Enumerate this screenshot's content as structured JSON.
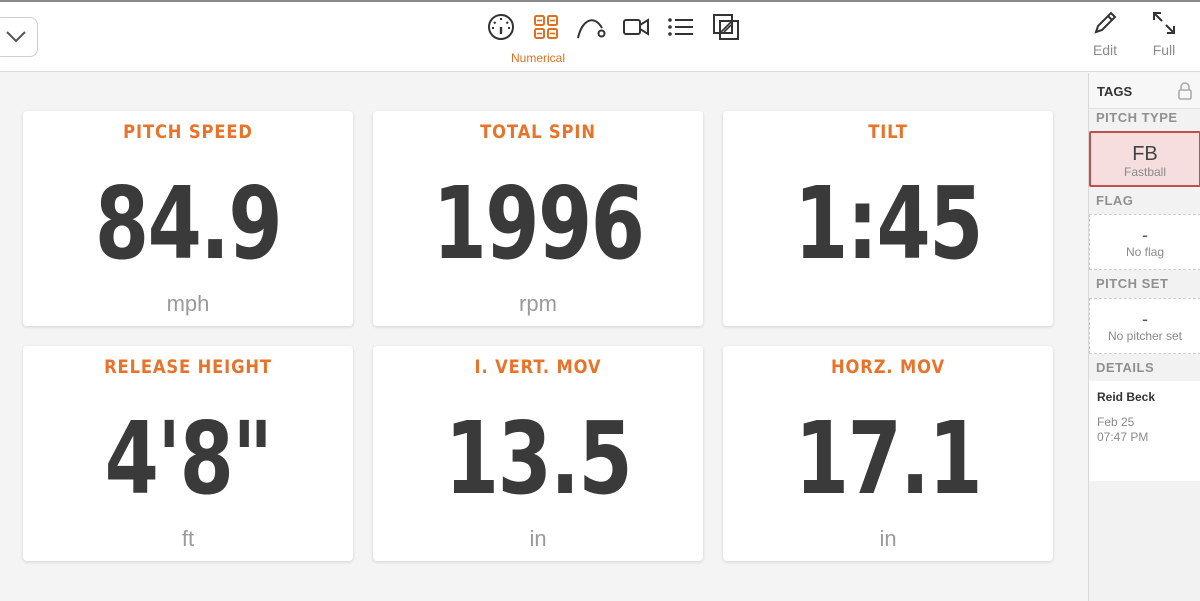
{
  "header": {
    "active_view_label": "Numerical",
    "views": [
      "gauge-icon",
      "grid-icon",
      "trajectory-icon",
      "video-icon",
      "list-icon",
      "overlay-icon"
    ],
    "edit_label": "Edit",
    "full_label": "Full"
  },
  "metrics": [
    {
      "title": "PITCH SPEED",
      "value": "84.9",
      "unit": "mph"
    },
    {
      "title": "TOTAL SPIN",
      "value": "1996",
      "unit": "rpm"
    },
    {
      "title": "TILT",
      "value": "1:45",
      "unit": ""
    },
    {
      "title": "RELEASE HEIGHT",
      "value": "4'8\"",
      "unit": "ft"
    },
    {
      "title": "I. VERT. MOV",
      "value": "13.5",
      "unit": "in"
    },
    {
      "title": "HORZ. MOV",
      "value": "17.1",
      "unit": "in"
    }
  ],
  "sidebar": {
    "tags_label": "TAGS",
    "pitch_type": {
      "header": "PITCH TYPE",
      "code": "FB",
      "name": "Fastball"
    },
    "flag": {
      "header": "FLAG",
      "value": "-",
      "subtitle": "No flag"
    },
    "pitch_set": {
      "header": "PITCH SET",
      "value": "-",
      "subtitle": "No pitcher set"
    },
    "details": {
      "header": "DETAILS",
      "player": "Reid Beck",
      "date": "Feb 25",
      "time": "07:47 PM"
    }
  },
  "colors": {
    "accent": "#e8742c",
    "value_text": "#3a3a3a",
    "selected_border": "#c0504d"
  }
}
